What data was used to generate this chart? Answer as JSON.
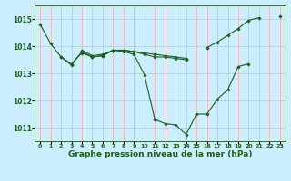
{
  "background_color": "#cceeff",
  "grid_color": "#ffaaaa",
  "line_color": "#1a5e1a",
  "marker_color": "#1a5e1a",
  "xlabel": "Graphe pression niveau de la mer (hPa)",
  "xlabel_fontsize": 6.5,
  "xlim": [
    -0.5,
    23.5
  ],
  "ylim": [
    1010.5,
    1015.5
  ],
  "yticks": [
    1011,
    1012,
    1013,
    1014,
    1015
  ],
  "xticks": [
    0,
    1,
    2,
    3,
    4,
    5,
    6,
    7,
    8,
    9,
    10,
    11,
    12,
    13,
    14,
    15,
    16,
    17,
    18,
    19,
    20,
    21,
    22,
    23
  ],
  "series": [
    [
      1014.8,
      1014.1,
      1013.6,
      1013.35,
      1013.75,
      1013.6,
      1013.65,
      1013.85,
      1013.8,
      1013.7,
      1012.95,
      1011.3,
      1011.15,
      1011.1,
      1010.75,
      1011.5,
      1011.5,
      1012.05,
      1012.4,
      1013.25,
      1013.35,
      null,
      null,
      1015.1
    ],
    [
      null,
      null,
      1013.6,
      1013.3,
      1013.8,
      1013.6,
      1013.65,
      1013.85,
      1013.85,
      1013.8,
      1013.7,
      1013.6,
      1013.6,
      1013.55,
      1013.5,
      null,
      null,
      null,
      null,
      null,
      null,
      null,
      null,
      null
    ],
    [
      null,
      null,
      null,
      null,
      1013.85,
      1013.65,
      1013.7,
      1013.85,
      1013.85,
      1013.8,
      1013.75,
      1013.7,
      1013.65,
      1013.6,
      1013.55,
      null,
      null,
      null,
      null,
      null,
      null,
      null,
      null,
      null
    ],
    [
      null,
      null,
      null,
      null,
      null,
      null,
      null,
      null,
      null,
      null,
      null,
      null,
      null,
      null,
      null,
      null,
      1013.95,
      1014.15,
      1014.4,
      1014.65,
      1014.95,
      1015.05,
      null,
      null
    ]
  ]
}
